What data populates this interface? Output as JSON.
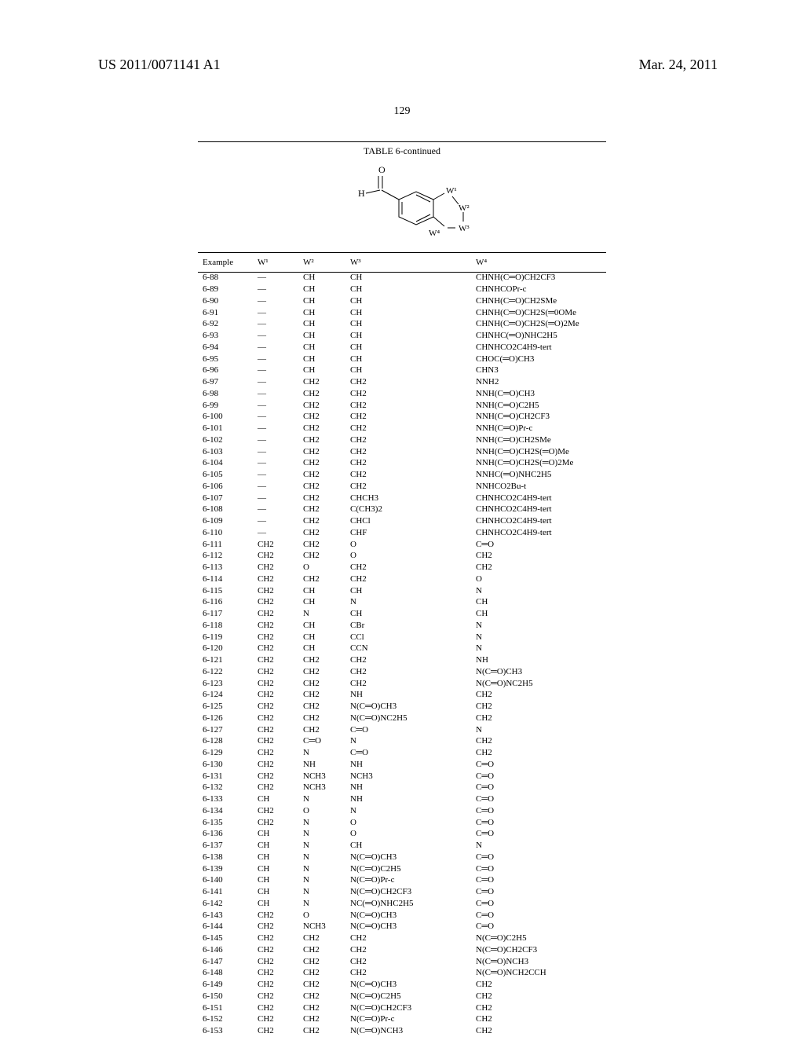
{
  "header": {
    "publication_number": "US 2011/0071141 A1",
    "publication_date": "Mar. 24, 2011"
  },
  "page_number": "129",
  "table": {
    "title": "TABLE 6-continued",
    "columns": [
      "Example",
      "W¹",
      "W²",
      "W³",
      "W⁴"
    ],
    "structure_labels": {
      "H": "H",
      "O": "O",
      "W1": "W¹",
      "W2": "W²",
      "W3": "W³",
      "W4": "W⁴"
    },
    "rows": [
      [
        "6-88",
        "—",
        "CH",
        "CH",
        "CHNH(C═O)CH2CF3"
      ],
      [
        "6-89",
        "—",
        "CH",
        "CH",
        "CHNHCOPr-c"
      ],
      [
        "6-90",
        "—",
        "CH",
        "CH",
        "CHNH(C═O)CH2SMe"
      ],
      [
        "6-91",
        "—",
        "CH",
        "CH",
        "CHNH(C═O)CH2S(═0OMe"
      ],
      [
        "6-92",
        "—",
        "CH",
        "CH",
        "CHNH(C═O)CH2S(═O)2Me"
      ],
      [
        "6-93",
        "—",
        "CH",
        "CH",
        "CHNHC(═O)NHC2H5"
      ],
      [
        "6-94",
        "—",
        "CH",
        "CH",
        "CHNHCO2C4H9-tert"
      ],
      [
        "6-95",
        "—",
        "CH",
        "CH",
        "CHOC(═O)CH3"
      ],
      [
        "6-96",
        "—",
        "CH",
        "CH",
        "CHN3"
      ],
      [
        "6-97",
        "—",
        "CH2",
        "CH2",
        "NNH2"
      ],
      [
        "6-98",
        "—",
        "CH2",
        "CH2",
        "NNH(C═O)CH3"
      ],
      [
        "6-99",
        "—",
        "CH2",
        "CH2",
        "NNH(C═O)C2H5"
      ],
      [
        "6-100",
        "—",
        "CH2",
        "CH2",
        "NNH(C═O)CH2CF3"
      ],
      [
        "6-101",
        "—",
        "CH2",
        "CH2",
        "NNH(C═O)Pr-c"
      ],
      [
        "6-102",
        "—",
        "CH2",
        "CH2",
        "NNH(C═O)CH2SMe"
      ],
      [
        "6-103",
        "—",
        "CH2",
        "CH2",
        "NNH(C═O)CH2S(═O)Me"
      ],
      [
        "6-104",
        "—",
        "CH2",
        "CH2",
        "NNH(C═O)CH2S(═O)2Me"
      ],
      [
        "6-105",
        "—",
        "CH2",
        "CH2",
        "NNHC(═O)NHC2H5"
      ],
      [
        "6-106",
        "—",
        "CH2",
        "CH2",
        "NNHCO2Bu-t"
      ],
      [
        "6-107",
        "—",
        "CH2",
        "CHCH3",
        "CHNHCO2C4H9-tert"
      ],
      [
        "6-108",
        "—",
        "CH2",
        "C(CH3)2",
        "CHNHCO2C4H9-tert"
      ],
      [
        "6-109",
        "—",
        "CH2",
        "CHCl",
        "CHNHCO2C4H9-tert"
      ],
      [
        "6-110",
        "—",
        "CH2",
        "CHF",
        "CHNHCO2C4H9-tert"
      ],
      [
        "6-111",
        "CH2",
        "CH2",
        "O",
        "C═O"
      ],
      [
        "6-112",
        "CH2",
        "CH2",
        "O",
        "CH2"
      ],
      [
        "6-113",
        "CH2",
        "O",
        "CH2",
        "CH2"
      ],
      [
        "6-114",
        "CH2",
        "CH2",
        "CH2",
        "O"
      ],
      [
        "6-115",
        "CH2",
        "CH",
        "CH",
        "N"
      ],
      [
        "6-116",
        "CH2",
        "CH",
        "N",
        "CH"
      ],
      [
        "6-117",
        "CH2",
        "N",
        "CH",
        "CH"
      ],
      [
        "6-118",
        "CH2",
        "CH",
        "CBr",
        "N"
      ],
      [
        "6-119",
        "CH2",
        "CH",
        "CCl",
        "N"
      ],
      [
        "6-120",
        "CH2",
        "CH",
        "CCN",
        "N"
      ],
      [
        "6-121",
        "CH2",
        "CH2",
        "CH2",
        "NH"
      ],
      [
        "6-122",
        "CH2",
        "CH2",
        "CH2",
        "N(C═O)CH3"
      ],
      [
        "6-123",
        "CH2",
        "CH2",
        "CH2",
        "N(C═O)NC2H5"
      ],
      [
        "6-124",
        "CH2",
        "CH2",
        "NH",
        "CH2"
      ],
      [
        "6-125",
        "CH2",
        "CH2",
        "N(C═O)CH3",
        "CH2"
      ],
      [
        "6-126",
        "CH2",
        "CH2",
        "N(C═O)NC2H5",
        "CH2"
      ],
      [
        "6-127",
        "CH2",
        "CH2",
        "C═O",
        "N"
      ],
      [
        "6-128",
        "CH2",
        "C═O",
        "N",
        "CH2"
      ],
      [
        "6-129",
        "CH2",
        "N",
        "C═O",
        "CH2"
      ],
      [
        "6-130",
        "CH2",
        "NH",
        "NH",
        "C═O"
      ],
      [
        "6-131",
        "CH2",
        "NCH3",
        "NCH3",
        "C═O"
      ],
      [
        "6-132",
        "CH2",
        "NCH3",
        "NH",
        "C═O"
      ],
      [
        "6-133",
        "CH",
        "N",
        "NH",
        "C═O"
      ],
      [
        "6-134",
        "CH2",
        "O",
        "N",
        "C═O"
      ],
      [
        "6-135",
        "CH2",
        "N",
        "O",
        "C═O"
      ],
      [
        "6-136",
        "CH",
        "N",
        "O",
        "C═O"
      ],
      [
        "6-137",
        "CH",
        "N",
        "CH",
        "N"
      ],
      [
        "6-138",
        "CH",
        "N",
        "N(C═O)CH3",
        "C═O"
      ],
      [
        "6-139",
        "CH",
        "N",
        "N(C═O)C2H5",
        "C═O"
      ],
      [
        "6-140",
        "CH",
        "N",
        "N(C═O)Pr-c",
        "C═O"
      ],
      [
        "6-141",
        "CH",
        "N",
        "N(C═O)CH2CF3",
        "C═O"
      ],
      [
        "6-142",
        "CH",
        "N",
        "NC(═O)NHC2H5",
        "C═O"
      ],
      [
        "6-143",
        "CH2",
        "O",
        "N(C═O)CH3",
        "C═O"
      ],
      [
        "6-144",
        "CH2",
        "NCH3",
        "N(C═O)CH3",
        "C═O"
      ],
      [
        "6-145",
        "CH2",
        "CH2",
        "CH2",
        "N(C═O)C2H5"
      ],
      [
        "6-146",
        "CH2",
        "CH2",
        "CH2",
        "N(C═O)CH2CF3"
      ],
      [
        "6-147",
        "CH2",
        "CH2",
        "CH2",
        "N(C═O)NCH3"
      ],
      [
        "6-148",
        "CH2",
        "CH2",
        "CH2",
        "N(C═O)NCH2CCH"
      ],
      [
        "6-149",
        "CH2",
        "CH2",
        "N(C═O)CH3",
        "CH2"
      ],
      [
        "6-150",
        "CH2",
        "CH2",
        "N(C═O)C2H5",
        "CH2"
      ],
      [
        "6-151",
        "CH2",
        "CH2",
        "N(C═O)CH2CF3",
        "CH2"
      ],
      [
        "6-152",
        "CH2",
        "CH2",
        "N(C═O)Pr-c",
        "CH2"
      ],
      [
        "6-153",
        "CH2",
        "CH2",
        "N(C═O)NCH3",
        "CH2"
      ]
    ]
  }
}
